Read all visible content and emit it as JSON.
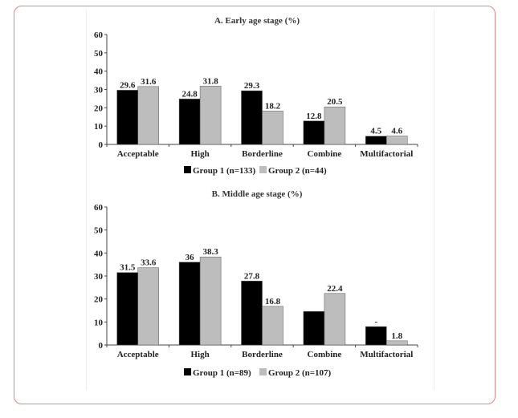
{
  "colors": {
    "group1": "#000000",
    "group2": "#bdbdbd",
    "axis": "#444444",
    "frame": "#d9888c"
  },
  "chart_data": [
    {
      "type": "bar",
      "title": "A. Early age stage (%)",
      "categories": [
        "Acceptable",
        "High",
        "Borderline",
        "Combine",
        "Multifactorial"
      ],
      "ylim": [
        0,
        60
      ],
      "yticks": [
        "0",
        "10",
        "20",
        "30",
        "40",
        "50",
        "60"
      ],
      "ytick_values": [
        0,
        10,
        20,
        30,
        40,
        50,
        60
      ],
      "series": [
        {
          "name": "Group 1 (n=133)",
          "values": [
            29.6,
            24.8,
            29.3,
            12.8,
            4.5
          ],
          "labels": [
            "29.6",
            "24.8",
            "29.3",
            "12.8",
            "4.5"
          ]
        },
        {
          "name": "Group 2 (n=44)",
          "values": [
            31.6,
            31.8,
            18.2,
            20.5,
            4.6
          ],
          "labels": [
            "31.6",
            "31.8",
            "18.2",
            "20.5",
            "4.6"
          ]
        }
      ],
      "legend": "bottom"
    },
    {
      "type": "bar",
      "title": "B. Middle age stage (%)",
      "categories": [
        "Acceptable",
        "High",
        "Borderline",
        "Combine",
        "Multifactorial"
      ],
      "ylim": [
        0,
        60
      ],
      "yticks": [
        "0",
        "10",
        "20",
        "30",
        "40",
        "50",
        "60"
      ],
      "ytick_values": [
        0,
        10,
        20,
        30,
        40,
        50,
        60
      ],
      "series": [
        {
          "name": "Group 1 (n=89)",
          "values": [
            31.5,
            36,
            27.8,
            14.6,
            8.0
          ],
          "labels": [
            "31.5",
            "36",
            "27.8",
            "",
            "-"
          ]
        },
        {
          "name": "Group 2 (n=107)",
          "values": [
            33.6,
            38.3,
            16.8,
            22.4,
            1.8
          ],
          "labels": [
            "33.6",
            "38.3",
            "16.8",
            "22.4",
            "1.8"
          ]
        }
      ],
      "legend": "bottom"
    }
  ]
}
